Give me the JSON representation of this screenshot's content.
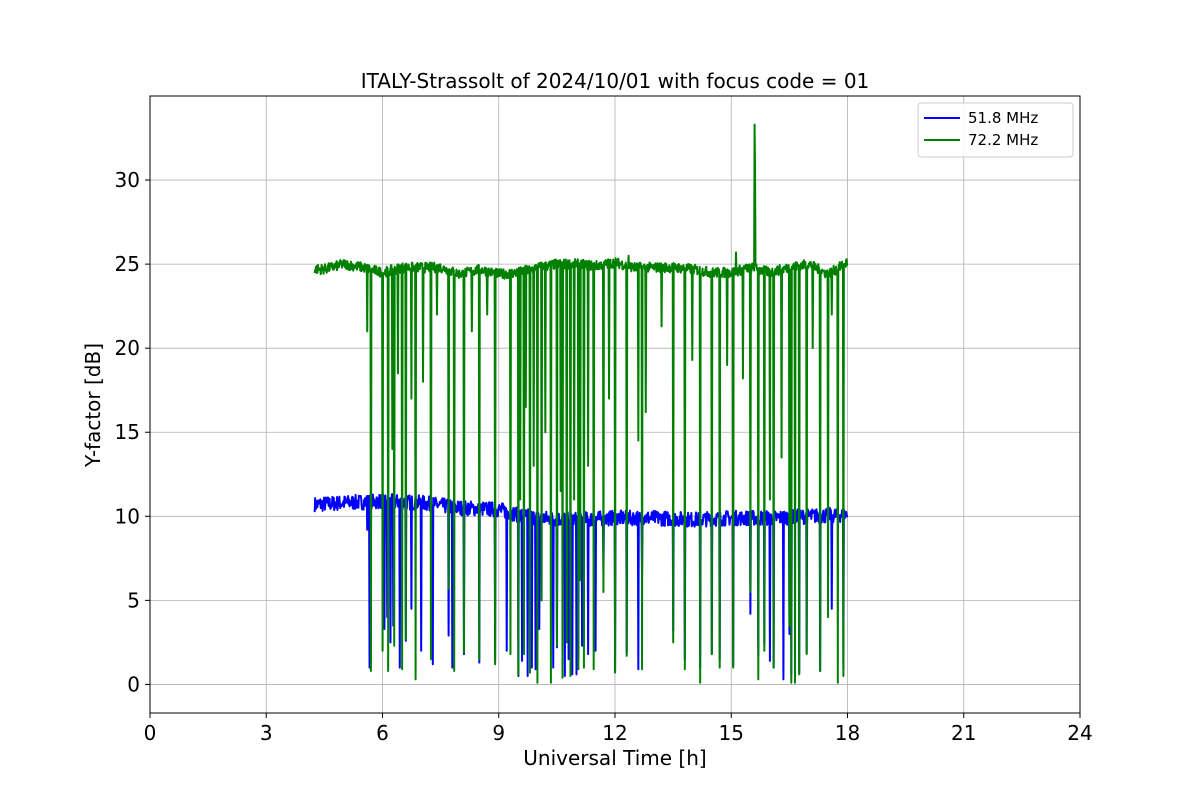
{
  "chart_data": {
    "type": "line",
    "title": "ITALY-Strassolt of 2024/10/01 with focus code = 01",
    "xlabel": "Universal Time [h]",
    "ylabel": "Y-factor [dB]",
    "xlim": [
      0,
      24
    ],
    "ylim": [
      -1.7,
      35
    ],
    "xticks": [
      0,
      3,
      6,
      9,
      12,
      15,
      18,
      21,
      24
    ],
    "yticks": [
      0,
      5,
      10,
      15,
      20,
      25,
      30
    ],
    "grid": true,
    "legend_position": "top-right",
    "series": [
      {
        "name": "51.8 MHz",
        "color": "#0000ff",
        "baseline": [
          [
            4.25,
            10.7
          ],
          [
            5.0,
            10.8
          ],
          [
            6.0,
            10.9
          ],
          [
            7.0,
            10.8
          ],
          [
            8.0,
            10.5
          ],
          [
            9.0,
            10.4
          ],
          [
            9.5,
            10.1
          ],
          [
            10.0,
            9.9
          ],
          [
            11.0,
            9.8
          ],
          [
            12.0,
            9.9
          ],
          [
            13.0,
            9.9
          ],
          [
            14.0,
            9.8
          ],
          [
            15.0,
            9.9
          ],
          [
            16.0,
            9.9
          ],
          [
            17.0,
            10.0
          ],
          [
            18.0,
            10.1
          ]
        ],
        "noise": 0.45,
        "dips": [
          [
            5.6,
            9.2
          ],
          [
            5.67,
            1.0
          ],
          [
            6.05,
            3.3
          ],
          [
            6.12,
            4.0
          ],
          [
            6.2,
            2.5
          ],
          [
            6.28,
            3.5
          ],
          [
            6.45,
            1.0
          ],
          [
            6.6,
            2.6
          ],
          [
            6.75,
            4.5
          ],
          [
            7.0,
            2.0
          ],
          [
            7.3,
            1.2
          ],
          [
            7.7,
            2.9
          ],
          [
            7.8,
            1.0
          ],
          [
            8.1,
            1.8
          ],
          [
            8.5,
            1.3
          ],
          [
            8.9,
            1.5
          ],
          [
            9.2,
            2.0
          ],
          [
            9.5,
            0.5
          ],
          [
            9.6,
            1.4
          ],
          [
            9.75,
            0.5
          ],
          [
            9.85,
            1.0
          ],
          [
            9.95,
            0.9
          ],
          [
            10.05,
            3.3
          ],
          [
            10.4,
            1.0
          ],
          [
            10.5,
            2.2
          ],
          [
            10.7,
            0.5
          ],
          [
            10.8,
            1.5
          ],
          [
            10.9,
            0.6
          ],
          [
            11.0,
            0.6
          ],
          [
            11.05,
            1.5
          ],
          [
            11.15,
            2.3
          ],
          [
            11.3,
            1.8
          ],
          [
            11.5,
            2.0
          ],
          [
            11.7,
            6.5
          ],
          [
            12.0,
            0.8
          ],
          [
            12.3,
            1.9
          ],
          [
            12.6,
            0.9
          ],
          [
            12.7,
            6.4
          ],
          [
            13.5,
            3.2
          ],
          [
            13.8,
            1.5
          ],
          [
            14.2,
            1.0
          ],
          [
            14.5,
            1.8
          ],
          [
            14.7,
            1.5
          ],
          [
            15.05,
            1.1
          ],
          [
            15.5,
            4.2
          ],
          [
            15.7,
            1.7
          ],
          [
            15.85,
            2.4
          ],
          [
            16.0,
            1.4
          ],
          [
            16.1,
            1.0
          ],
          [
            16.35,
            0.3
          ],
          [
            16.5,
            3.0
          ],
          [
            16.55,
            0.6
          ],
          [
            16.75,
            0.7
          ],
          [
            16.95,
            1.9
          ],
          [
            17.3,
            0.8
          ],
          [
            17.6,
            4.5
          ],
          [
            17.9,
            0.9
          ]
        ]
      },
      {
        "name": "72.2 MHz",
        "color": "#008000",
        "baseline": [
          [
            4.25,
            24.7
          ],
          [
            4.5,
            24.7
          ],
          [
            5.0,
            25.0
          ],
          [
            5.5,
            24.8
          ],
          [
            6.0,
            24.5
          ],
          [
            6.5,
            24.8
          ],
          [
            7.0,
            24.8
          ],
          [
            7.5,
            24.8
          ],
          [
            8.0,
            24.4
          ],
          [
            8.5,
            24.7
          ],
          [
            9.0,
            24.4
          ],
          [
            9.5,
            24.5
          ],
          [
            10.0,
            24.8
          ],
          [
            10.5,
            25.0
          ],
          [
            11.0,
            25.0
          ],
          [
            11.5,
            24.9
          ],
          [
            12.0,
            25.1
          ],
          [
            12.5,
            24.8
          ],
          [
            13.0,
            24.8
          ],
          [
            13.5,
            24.8
          ],
          [
            14.0,
            24.7
          ],
          [
            14.5,
            24.5
          ],
          [
            15.0,
            24.5
          ],
          [
            15.5,
            24.8
          ],
          [
            16.0,
            24.5
          ],
          [
            16.5,
            24.8
          ],
          [
            17.0,
            25.0
          ],
          [
            17.5,
            24.4
          ],
          [
            18.0,
            25.1
          ]
        ],
        "noise": 0.3,
        "spikes": [
          [
            15.6,
            33.3
          ],
          [
            15.62,
            30.6
          ],
          [
            15.12,
            25.7
          ],
          [
            12.35,
            25.5
          ]
        ],
        "dips": [
          [
            5.6,
            21.0
          ],
          [
            5.7,
            0.8
          ],
          [
            6.0,
            2.0
          ],
          [
            6.15,
            0.8
          ],
          [
            6.25,
            14.0
          ],
          [
            6.3,
            2.3
          ],
          [
            6.4,
            18.5
          ],
          [
            6.5,
            0.9
          ],
          [
            6.6,
            2.7
          ],
          [
            6.75,
            17.0
          ],
          [
            6.85,
            0.3
          ],
          [
            7.05,
            18.0
          ],
          [
            7.25,
            1.5
          ],
          [
            7.4,
            22.0
          ],
          [
            7.7,
            5.7
          ],
          [
            7.85,
            0.8
          ],
          [
            8.1,
            1.9
          ],
          [
            8.3,
            21.0
          ],
          [
            8.5,
            1.5
          ],
          [
            8.7,
            22.0
          ],
          [
            8.9,
            1.2
          ],
          [
            9.3,
            1.8
          ],
          [
            9.5,
            0.6
          ],
          [
            9.55,
            11.0
          ],
          [
            9.65,
            1.8
          ],
          [
            9.7,
            16.5
          ],
          [
            9.8,
            0.7
          ],
          [
            9.9,
            13.0
          ],
          [
            10.0,
            0.1
          ],
          [
            10.1,
            5.0
          ],
          [
            10.2,
            15.0
          ],
          [
            10.35,
            0.1
          ],
          [
            10.5,
            2.3
          ],
          [
            10.6,
            11.5
          ],
          [
            10.65,
            0.4
          ],
          [
            10.75,
            2.5
          ],
          [
            10.85,
            0.5
          ],
          [
            10.95,
            11.0
          ],
          [
            11.05,
            0.9
          ],
          [
            11.1,
            6.2
          ],
          [
            11.2,
            1.0
          ],
          [
            11.3,
            13.0
          ],
          [
            11.45,
            0.9
          ],
          [
            11.7,
            5.5
          ],
          [
            11.85,
            17.0
          ],
          [
            12.0,
            0.7
          ],
          [
            12.3,
            1.7
          ],
          [
            12.6,
            14.5
          ],
          [
            12.7,
            0.9
          ],
          [
            12.8,
            16.2
          ],
          [
            13.2,
            21.3
          ],
          [
            13.5,
            2.5
          ],
          [
            13.8,
            0.9
          ],
          [
            14.0,
            19.3
          ],
          [
            14.2,
            0.1
          ],
          [
            14.5,
            1.8
          ],
          [
            14.7,
            1.0
          ],
          [
            14.9,
            19.0
          ],
          [
            15.05,
            1.0
          ],
          [
            15.3,
            18.2
          ],
          [
            15.5,
            5.5
          ],
          [
            15.7,
            0.3
          ],
          [
            15.85,
            2.0
          ],
          [
            16.0,
            11.0
          ],
          [
            16.1,
            1.0
          ],
          [
            16.3,
            13.5
          ],
          [
            16.5,
            3.5
          ],
          [
            16.55,
            0.1
          ],
          [
            16.65,
            0.1
          ],
          [
            16.75,
            0.6
          ],
          [
            16.95,
            1.8
          ],
          [
            17.1,
            20.0
          ],
          [
            17.3,
            0.8
          ],
          [
            17.5,
            4.0
          ],
          [
            17.6,
            22.0
          ],
          [
            17.75,
            0.1
          ],
          [
            17.9,
            0.5
          ]
        ]
      }
    ]
  }
}
